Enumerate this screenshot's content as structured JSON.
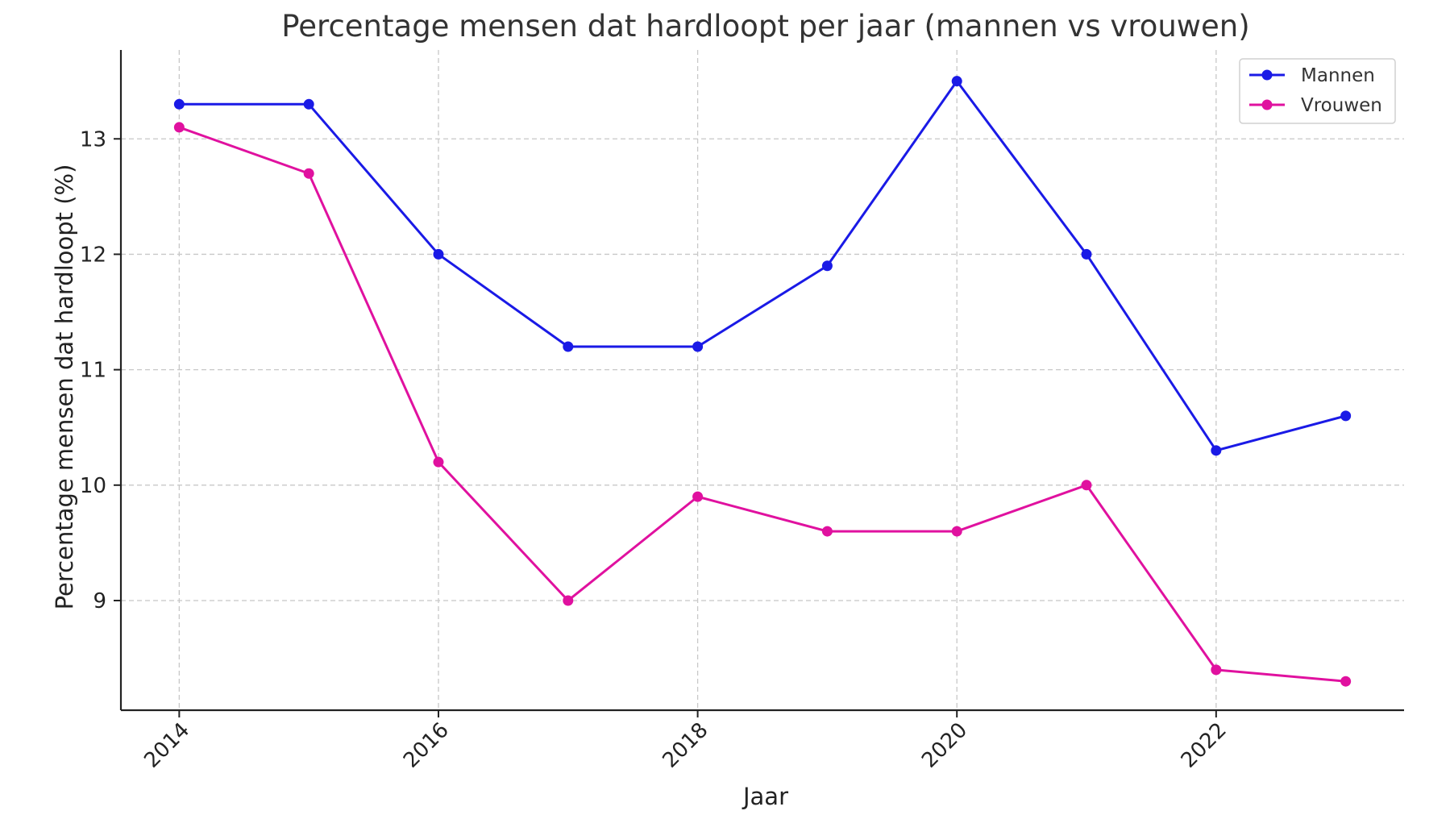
{
  "chart_data": {
    "type": "line",
    "title": "Percentage mensen dat hardloopt per jaar (mannen vs vrouwen)",
    "xlabel": "Jaar",
    "ylabel": "Percentage mensen dat hardloopt (%)",
    "x": [
      2014,
      2015,
      2016,
      2017,
      2018,
      2019,
      2020,
      2021,
      2022,
      2023
    ],
    "xlim": [
      2013.55,
      2023.45
    ],
    "ylim": [
      8.05,
      13.77
    ],
    "xticks": [
      2014,
      2016,
      2018,
      2020,
      2022
    ],
    "xtick_labels": [
      "2014",
      "2016",
      "2018",
      "2020",
      "2022"
    ],
    "yticks": [
      9,
      10,
      11,
      12,
      13
    ],
    "ytick_labels": [
      "9",
      "10",
      "11",
      "12",
      "13"
    ],
    "grid": true,
    "legend_position": "top-right",
    "series": [
      {
        "name": "Mannen",
        "color": "#1a1ae6",
        "values": [
          13.3,
          13.3,
          12.0,
          11.2,
          11.2,
          11.9,
          13.5,
          12.0,
          10.3,
          10.6
        ]
      },
      {
        "name": "Vrouwen",
        "color": "#e0119f",
        "values": [
          13.1,
          12.7,
          10.2,
          9.0,
          9.9,
          9.6,
          9.6,
          10.0,
          8.4,
          8.3
        ]
      }
    ]
  }
}
